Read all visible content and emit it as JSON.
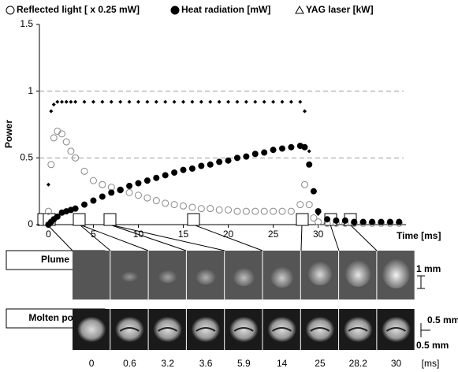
{
  "chart_data": {
    "type": "scatter",
    "ylabel": "Power",
    "xlabel": "Time [ms]",
    "x": [
      0,
      0.3,
      0.6,
      1,
      1.5,
      2,
      2.5,
      3,
      4,
      5,
      6,
      7,
      8,
      9,
      10,
      11,
      12,
      13,
      14,
      15,
      16,
      17,
      18,
      19,
      20,
      21,
      22,
      23,
      24,
      25,
      26,
      27,
      28,
      28.5,
      29,
      29.5,
      30,
      31,
      32,
      33,
      34,
      35,
      36,
      37,
      38,
      39
    ],
    "series": [
      {
        "name": "Reflected light [ x 0.25 mW]",
        "color": "#888888",
        "marker": "open-circle",
        "values": [
          0.1,
          0.45,
          0.65,
          0.7,
          0.68,
          0.62,
          0.55,
          0.5,
          0.4,
          0.33,
          0.3,
          0.28,
          0.26,
          0.24,
          0.22,
          0.2,
          0.18,
          0.16,
          0.15,
          0.14,
          0.13,
          0.12,
          0.12,
          0.11,
          0.11,
          0.1,
          0.1,
          0.1,
          0.1,
          0.1,
          0.1,
          0.1,
          0.15,
          0.3,
          0.15,
          0.05,
          0.02,
          0.01,
          0.01,
          0.01,
          0.01,
          0.01,
          0.01,
          0.01,
          0.01,
          0.01
        ]
      },
      {
        "name": "Heat radiation [mW]",
        "color": "#000000",
        "marker": "filled-circle",
        "values": [
          0,
          0.02,
          0.04,
          0.06,
          0.09,
          0.1,
          0.11,
          0.12,
          0.15,
          0.18,
          0.21,
          0.24,
          0.26,
          0.29,
          0.31,
          0.33,
          0.35,
          0.37,
          0.39,
          0.41,
          0.42,
          0.44,
          0.45,
          0.47,
          0.48,
          0.5,
          0.51,
          0.53,
          0.54,
          0.56,
          0.57,
          0.58,
          0.59,
          0.58,
          0.45,
          0.25,
          0.1,
          0.04,
          0.03,
          0.03,
          0.02,
          0.02,
          0.02,
          0.02,
          0.02,
          0.02
        ]
      },
      {
        "name": "YAG laser [kW]",
        "color": "#000000",
        "marker": "open-triangle",
        "values": [
          0.3,
          0.85,
          0.9,
          0.92,
          0.92,
          0.92,
          0.92,
          0.92,
          0.92,
          0.92,
          0.92,
          0.92,
          0.92,
          0.92,
          0.92,
          0.92,
          0.92,
          0.92,
          0.92,
          0.92,
          0.92,
          0.92,
          0.92,
          0.92,
          0.92,
          0.92,
          0.92,
          0.92,
          0.92,
          0.92,
          0.92,
          0.92,
          0.92,
          0.85,
          0.55,
          0.25,
          0.08,
          0.03,
          0.03,
          0.03,
          0.03,
          0.03,
          0.03,
          0.03,
          0.03,
          0.03
        ]
      }
    ],
    "xlim": [
      -1,
      39.5
    ],
    "xticks": [
      0,
      5,
      10,
      15,
      20,
      25,
      30
    ],
    "ylim": [
      0,
      1.5
    ],
    "yticks": [
      0,
      0.5,
      1,
      1.5
    ],
    "grid": true
  },
  "frames": {
    "rows": [
      "Plume",
      "Molten pool"
    ],
    "times": [
      0,
      0.6,
      3.2,
      3.6,
      5.9,
      14,
      25,
      28.2,
      30
    ],
    "unit": "[ms]",
    "scale_plume": "1 mm",
    "scale_pool_x": "0.5 mm",
    "scale_pool_y": "0.5 mm"
  }
}
